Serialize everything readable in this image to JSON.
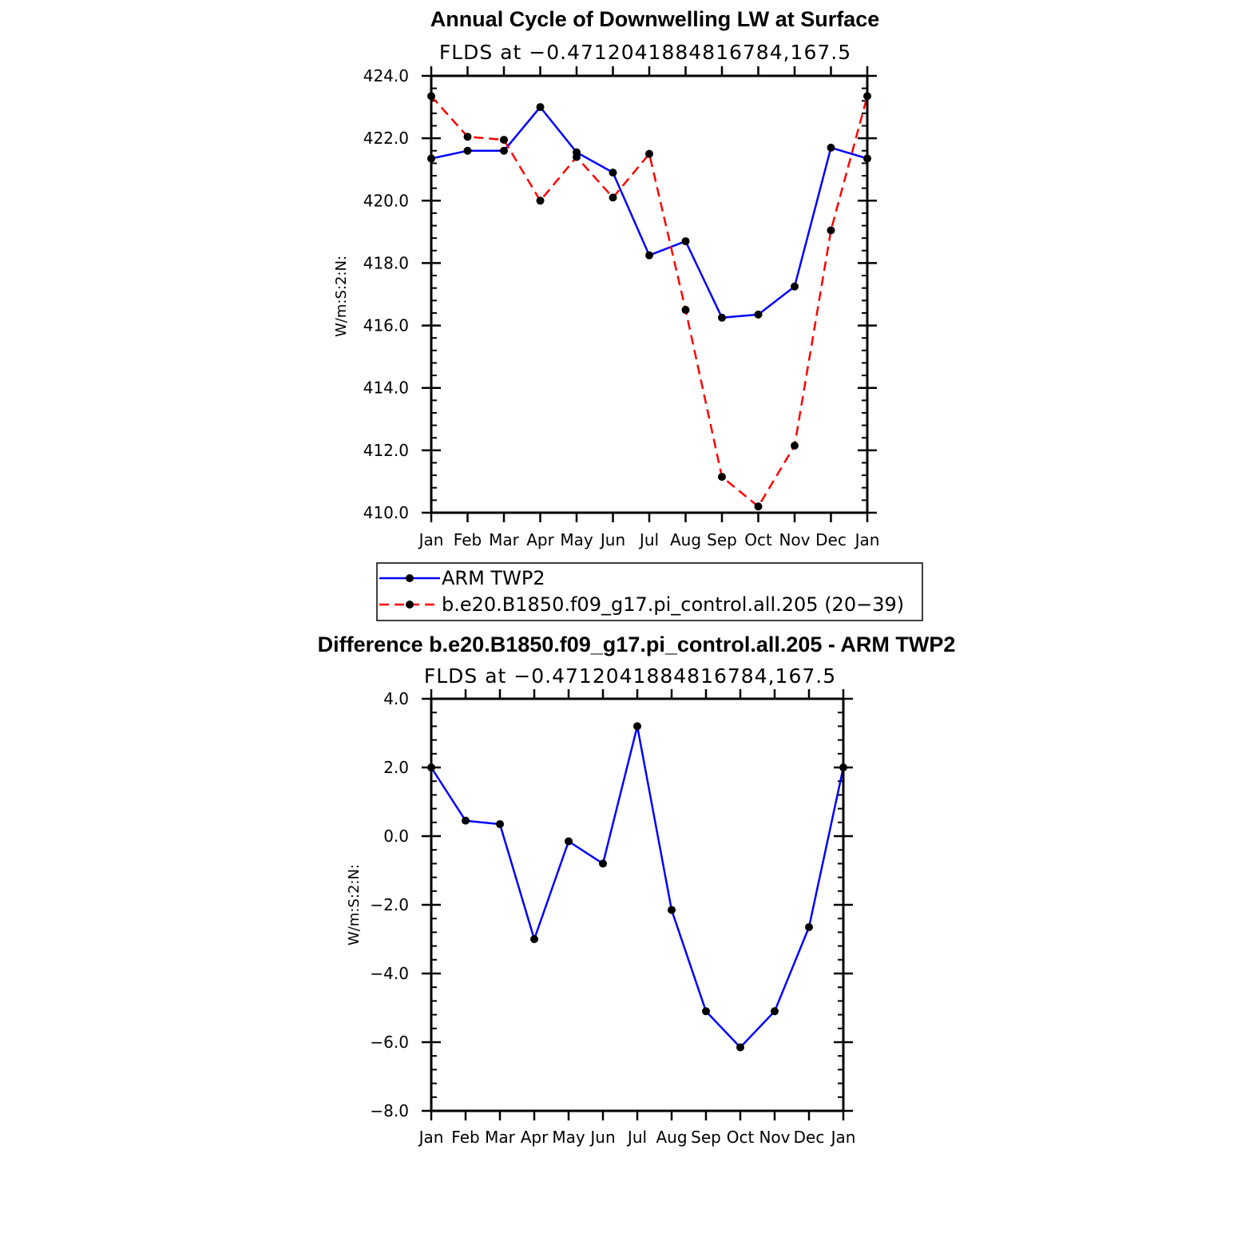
{
  "chart_data": [
    {
      "type": "line",
      "title": "Annual Cycle of Downwelling LW at Surface",
      "subtitle": "FLDS at −0.4712041884816784,167.5",
      "xlabel": "",
      "ylabel": "W/m:S:2:N:",
      "categories": [
        "Jan",
        "Feb",
        "Mar",
        "Apr",
        "May",
        "Jun",
        "Jul",
        "Aug",
        "Sep",
        "Oct",
        "Nov",
        "Dec",
        "Jan"
      ],
      "ylim": [
        410.0,
        424.0
      ],
      "yticks": [
        "410.0",
        "412.0",
        "414.0",
        "416.0",
        "418.0",
        "420.0",
        "422.0",
        "424.0"
      ],
      "series": [
        {
          "name": "ARM TWP2",
          "color": "#0000ff",
          "dash": "solid",
          "values": [
            421.35,
            421.6,
            421.6,
            423.0,
            421.55,
            420.9,
            418.25,
            418.7,
            416.25,
            416.35,
            417.25,
            421.7,
            421.35
          ]
        },
        {
          "name": "b.e20.B1850.f09_g17.pi_control.all.205 (20−39)",
          "color": "#ff0000",
          "dash": "dashed",
          "values": [
            423.35,
            422.05,
            421.95,
            420.0,
            421.4,
            420.1,
            421.5,
            416.5,
            411.15,
            410.2,
            412.15,
            419.05,
            423.35
          ]
        }
      ],
      "legend_position": "below"
    },
    {
      "type": "line",
      "title": "Difference b.e20.B1850.f09_g17.pi_control.all.205 - ARM TWP2",
      "subtitle": "FLDS at −0.4712041884816784,167.5",
      "xlabel": "",
      "ylabel": "W/m:S:2:N:",
      "categories": [
        "Jan",
        "Feb",
        "Mar",
        "Apr",
        "May",
        "Jun",
        "Jul",
        "Aug",
        "Sep",
        "Oct",
        "Nov",
        "Dec",
        "Jan"
      ],
      "ylim": [
        -8.0,
        4.0
      ],
      "yticks": [
        "−8.0",
        "−6.0",
        "−4.0",
        "−2.0",
        "0.0",
        "2.0",
        "4.0"
      ],
      "series": [
        {
          "name": "Difference",
          "color": "#0000ff",
          "dash": "solid",
          "values": [
            2.0,
            0.45,
            0.35,
            -3.0,
            -0.15,
            -0.8,
            3.2,
            -2.15,
            -5.1,
            -6.15,
            -5.1,
            -2.65,
            2.0
          ]
        }
      ]
    }
  ]
}
